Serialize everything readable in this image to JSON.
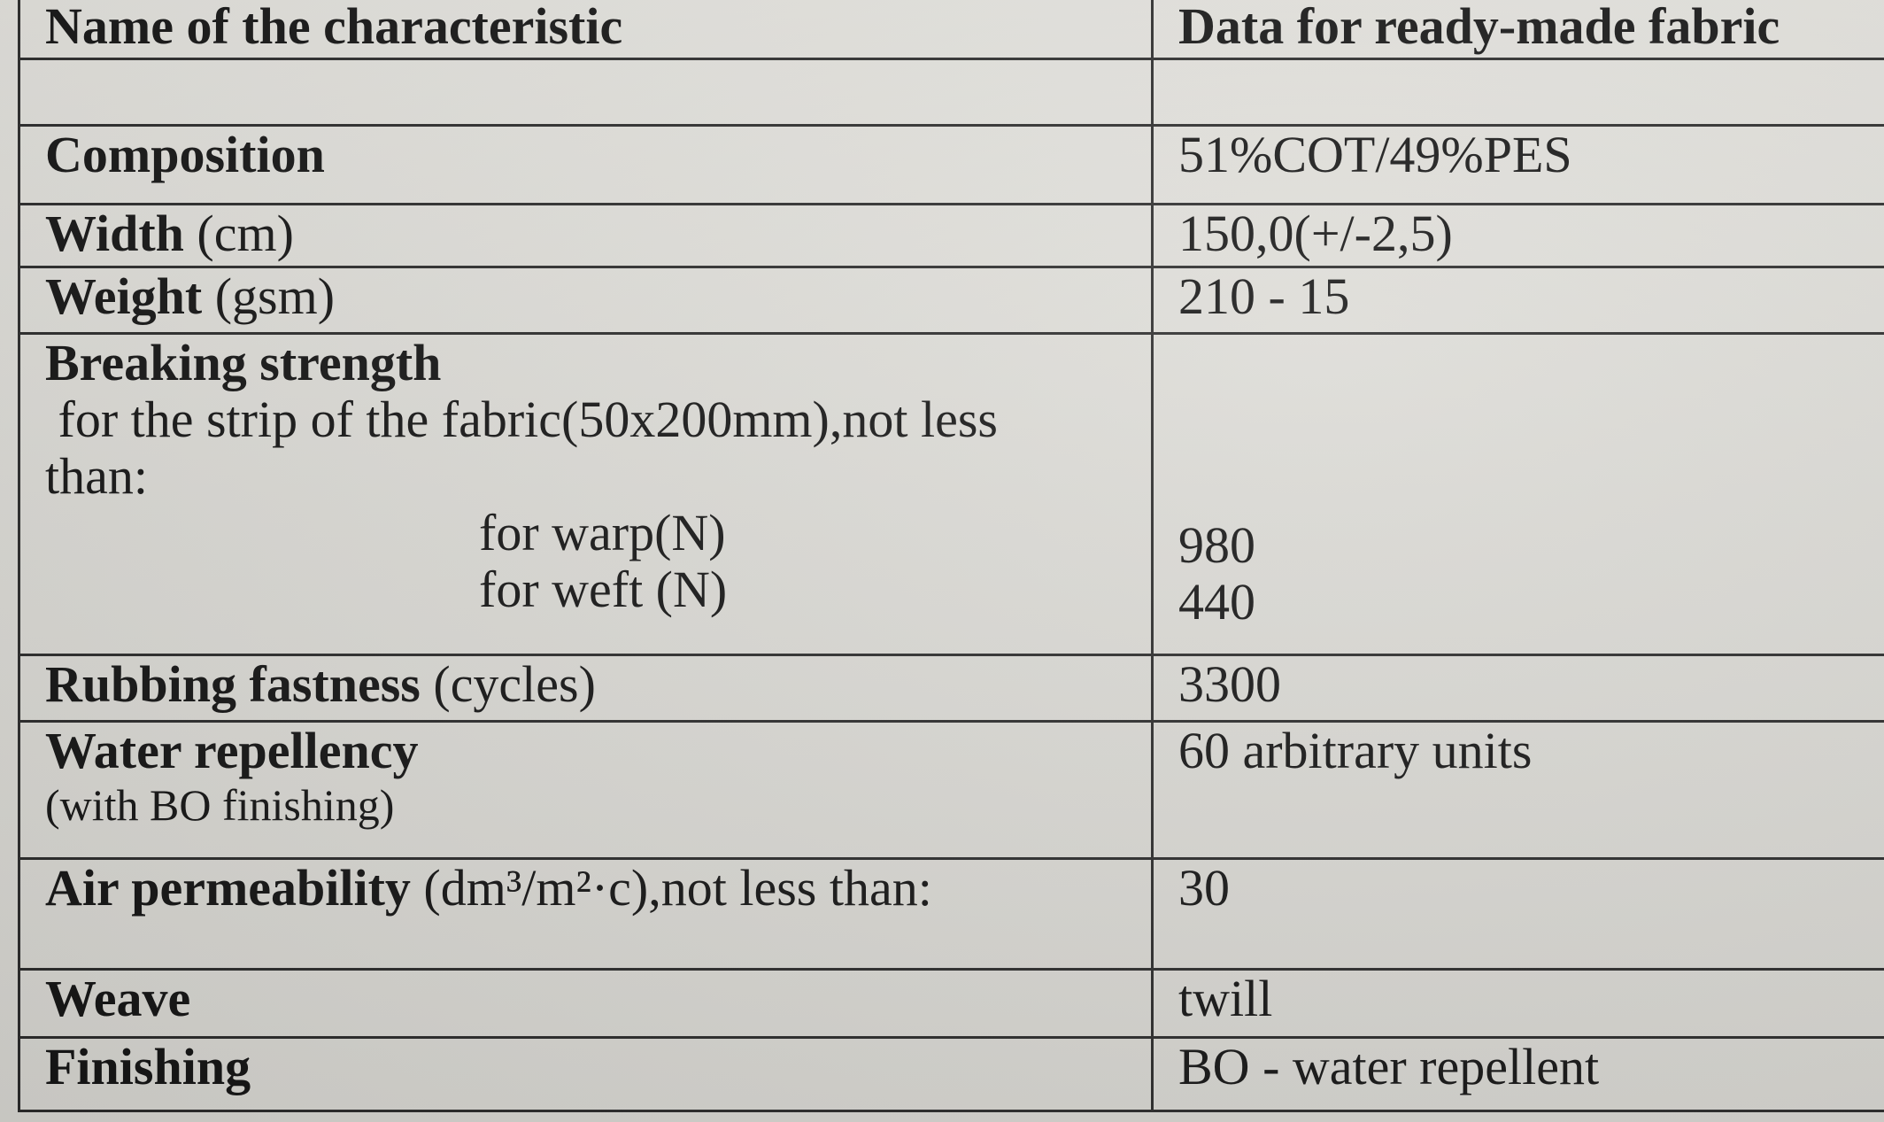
{
  "header": {
    "col1": "Name of the characteristic",
    "col2": "Data for ready-made fabric"
  },
  "rows": {
    "composition": {
      "name": "Composition",
      "value": "51%COT/49%PES"
    },
    "width": {
      "name": "Width",
      "unit": "(cm)",
      "value": "150,0(+/-2,5)"
    },
    "weight": {
      "name": "Weight",
      "unit": "(gsm)",
      "value": "210 - 15"
    },
    "breaking": {
      "name": "Breaking strength",
      "desc1": " for the strip of the fabric(50x200mm),not less",
      "desc2": "than:",
      "warp_label": "for warp(N)",
      "weft_label": "for weft (N)",
      "warp_value": "980",
      "weft_value": "440"
    },
    "rubbing": {
      "name": "Rubbing fastness",
      "unit": "(cycles)",
      "value": "3300"
    },
    "water": {
      "name": "Water repellency",
      "note": "(with BO finishing)",
      "value": "60 arbitrary units"
    },
    "air": {
      "name": "Air permeability",
      "unit": "(dm³/m²·c),not less than:",
      "value": "30"
    },
    "weave": {
      "name": "Weave",
      "value": "twill"
    },
    "finishing": {
      "name": "Finishing",
      "value": "BO - water repellent"
    }
  }
}
